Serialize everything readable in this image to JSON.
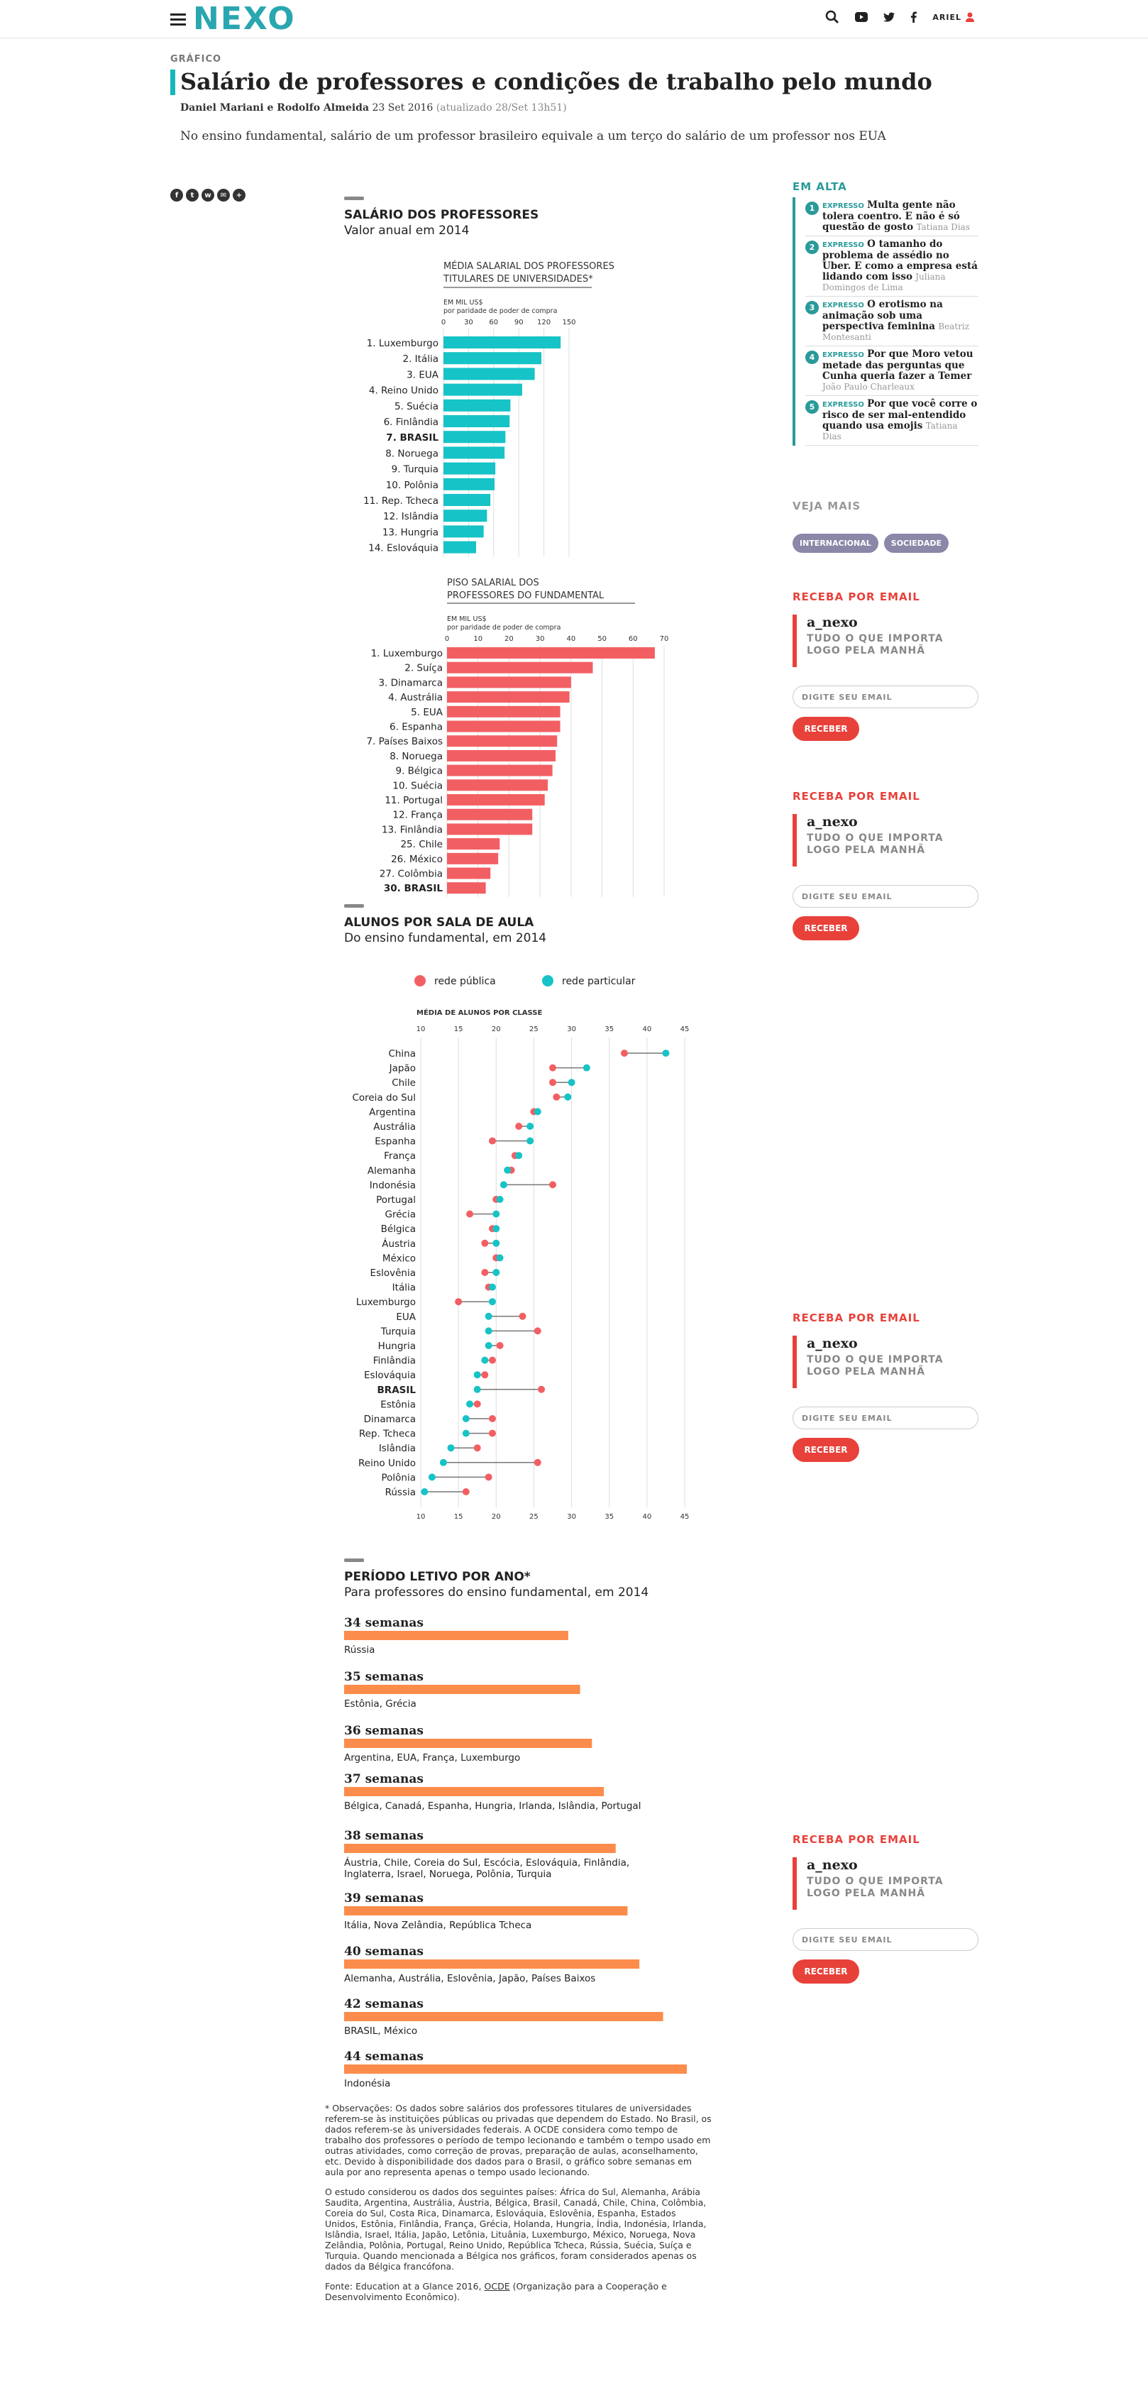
{
  "header": {
    "logo": "NEXO",
    "user": "ARIEL"
  },
  "article": {
    "kicker": "GRÁFICO",
    "title": "Salário de professores e condições de trabalho pelo mundo",
    "authors": "Daniel Mariani e Rodolfo Almeida",
    "date": "23 Set 2016",
    "updated": "(atualizado 28/Set 13h51)",
    "dek": "No ensino fundamental, salário de um professor brasileiro equivale a um terço do salário de um professor nos EUA"
  },
  "colors": {
    "teal": "#16c3c6",
    "red": "#f25f63",
    "orange": "#fb8c4b",
    "accent": "#2aa6b0"
  },
  "chart_data": [
    {
      "type": "bar",
      "section_title": "SALÁRIO DOS PROFESSORES",
      "section_subtitle": "Valor anual em 2014",
      "title": "MÉDIA SALARIAL DOS PROFESSORES TITULARES DE UNIVERSIDADES*",
      "unit": "EM MIL US$",
      "unit2": "por paridade de poder de compra",
      "xticks": [
        "0",
        "30",
        "60",
        "90",
        "120",
        "150"
      ],
      "xlim": [
        0,
        150
      ],
      "categories": [
        "1. Luxemburgo",
        "2. Itália",
        "3. EUA",
        "4. Reino Unido",
        "5. Suécia",
        "6. Finlândia",
        "7. BRASIL",
        "8. Noruega",
        "9. Turquia",
        "10. Polônia",
        "11. Rep. Tcheca",
        "12. Islândia",
        "13. Hungria",
        "14. Eslováquia"
      ],
      "values": [
        140,
        117,
        109,
        94,
        80,
        79,
        74,
        73,
        62,
        61,
        56,
        52,
        48,
        39
      ],
      "color": "#16c3c6"
    },
    {
      "type": "bar",
      "title": "PISO SALARIAL DOS PROFESSORES DO FUNDAMENTAL",
      "unit": "EM MIL US$",
      "unit2": "por paridade de poder de compra",
      "xticks": [
        "0",
        "10",
        "20",
        "30",
        "40",
        "50",
        "60",
        "70"
      ],
      "xlim": [
        0,
        70
      ],
      "categories": [
        "1. Luxemburgo",
        "2. Suíça",
        "3. Dinamarca",
        "4. Austrália",
        "5. EUA",
        "6. Espanha",
        "7. Países Baixos",
        "8. Noruega",
        "9. Bélgica",
        "10. Suécia",
        "11. Portugal",
        "12. França",
        "13. Finlândia",
        "25. Chile",
        "26. México",
        "27. Colômbia",
        "30. BRASIL"
      ],
      "values": [
        67,
        47,
        40,
        39.5,
        36.5,
        36.5,
        35.5,
        35,
        34,
        32.5,
        31.5,
        27.5,
        27.5,
        17,
        16.5,
        14,
        12.5
      ],
      "color": "#f25f63"
    },
    {
      "type": "scatter",
      "section_title": "ALUNOS POR SALA DE AULA",
      "section_subtitle": "Do ensino fundamental, em 2014",
      "legend": [
        "rede pública",
        "rede particular"
      ],
      "title": "MÉDIA DE ALUNOS POR CLASSE",
      "xticks": [
        "10",
        "15",
        "20",
        "25",
        "30",
        "35",
        "40",
        "45"
      ],
      "xlim": [
        10,
        45
      ],
      "categories": [
        "China",
        "Japão",
        "Chile",
        "Coreia do Sul",
        "Argentina",
        "Austrália",
        "Espanha",
        "França",
        "Alemanha",
        "Indonésia",
        "Portugal",
        "Grécia",
        "Bélgica",
        "Áustria",
        "México",
        "Eslovênia",
        "Itália",
        "Luxemburgo",
        "EUA",
        "Turquia",
        "Hungria",
        "Finlândia",
        "Eslováquia",
        "BRASIL",
        "Estônia",
        "Dinamarca",
        "Rep. Tcheca",
        "Islândia",
        "Reino Unido",
        "Polônia",
        "Rússia"
      ],
      "series": [
        {
          "name": "rede pública",
          "values": [
            37,
            27.5,
            27.5,
            28,
            25,
            23,
            19.5,
            22.5,
            22,
            27.5,
            20,
            16.5,
            19.5,
            18.5,
            20,
            18.5,
            19,
            15,
            23.5,
            25.5,
            20.5,
            19.5,
            18.5,
            26,
            17.5,
            19.5,
            19.5,
            17.5,
            25.5,
            19,
            16
          ],
          "color": "#f25f63"
        },
        {
          "name": "rede particular",
          "values": [
            42.5,
            32,
            30,
            29.5,
            25.5,
            24.5,
            24.5,
            23,
            21.5,
            21,
            20.5,
            20,
            20,
            20,
            20.5,
            20,
            19.5,
            19.5,
            19,
            19,
            19,
            18.5,
            17.5,
            17.5,
            16.5,
            16,
            16,
            14,
            13,
            11.5,
            10.5
          ],
          "color": "#16c3c6"
        }
      ]
    },
    {
      "type": "bar",
      "section_title": "PERÍODO LETIVO POR ANO*",
      "section_subtitle": "Para professores do ensino fundamental, em 2014",
      "categories": [
        "34 semanas",
        "35 semanas",
        "36 semanas",
        "37 semanas",
        "38 semanas",
        "39 semanas",
        "40 semanas",
        "42 semanas",
        "44 semanas"
      ],
      "values": [
        34,
        35,
        36,
        37,
        38,
        39,
        40,
        42,
        44
      ],
      "countries": [
        "Rússia",
        "Estônia, Grécia",
        "Argentina, EUA, França, Luxemburgo",
        "Bélgica, Canadá, Espanha, Hungria, Irlanda, Islândia, Portugal",
        "Áustria, Chile, Coreia do Sul, Escócia, Eslováquia, Finlândia, | Inglaterra, Israel, Noruega, Polônia, Turquia",
        "Itália, Nova Zelândia, República Tcheca",
        "Alemanha, Austrália, Eslovênia, Japão, Países Baixos",
        "BRASIL, México",
        "Indonésia"
      ],
      "color": "#fb8c4b"
    }
  ],
  "notes": {
    "obs": "* Observações: Os dados sobre salários dos professores titulares de universidades referem-se às instituições públicas ou privadas que dependem do Estado. No Brasil, os dados referem-se às universidades federais. A OCDE considera como tempo de trabalho dos professores o período de tempo lecionando e também o tempo usado em outras atividades, como correção de provas, preparação de aulas, aconselhamento, etc. Devido à disponibilidade dos dados para o Brasil, o gráfico sobre semanas em aula por ano representa apenas o tempo usado lecionando.",
    "countries": "O estudo considerou os dados dos seguintes países: África do Sul, Alemanha, Arábia Saudita, Argentina, Austrália, Áustria, Bélgica, Brasil, Canadá, Chile, China, Colômbia, Coreia do Sul, Costa Rica, Dinamarca, Eslováquia, Eslovênia, Espanha, Estados Unidos, Estônia, Finlândia, França, Grécia, Holanda, Hungria, Índia, Indonésia, Irlanda, Islândia, Israel, Itália, Japão, Letônia, Lituânia, Luxemburgo, México, Noruega, Nova Zelândia, Polônia, Portugal, Reino Unido, República Tcheca, Rússia, Suécia, Suíça e Turquia. Quando mencionada a Bélgica nos gráficos, foram considerados apenas os dados da Bélgica francófona.",
    "source_a": "Fonte: Education at a Glance 2016, ",
    "source_link": "OCDE",
    "source_b": " (Organização para a Cooperação e Desenvolvimento Econômico)."
  },
  "sidebar": {
    "em_alta": "EM ALTA",
    "items": [
      {
        "n": "1",
        "tag": "EXPRESSO",
        "title": "Multa gente não tolera coentro. E não é só questão de gosto",
        "author": "Tatiana Dias"
      },
      {
        "n": "2",
        "tag": "EXPRESSO",
        "title": "O tamanho do problema de assédio no Uber. E como a empresa está lidando com isso",
        "author": "Juliana Domingos de Lima"
      },
      {
        "n": "3",
        "tag": "EXPRESSO",
        "title": "O erotismo na animação sob uma perspectiva feminina",
        "author": "Beatriz Montesanti"
      },
      {
        "n": "4",
        "tag": "EXPRESSO",
        "title": "Por que Moro vetou metade das perguntas que Cunha queria fazer a Temer",
        "author": "João Paulo Charleaux"
      },
      {
        "n": "5",
        "tag": "EXPRESSO",
        "title": "Por que você corre o risco de ser mal-entendido quando usa emojis",
        "author": "Tatiana Dias"
      }
    ],
    "veja_mais": "VEJA MAIS",
    "tags": [
      "INTERNACIONAL",
      "SOCIEDADE"
    ],
    "newsletter": {
      "heading": "RECEBA POR EMAIL",
      "logo": "a_nexo",
      "desc": "TUDO O QUE IMPORTA LOGO PELA MANHÃ",
      "placeholder": "DIGITE SEU EMAIL",
      "button": "RECEBER"
    }
  }
}
